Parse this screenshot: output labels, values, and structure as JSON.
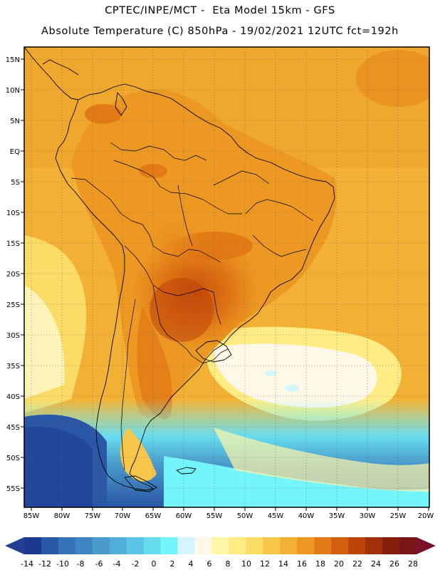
{
  "header": {
    "line1": "CPTEC/INPE/MCT -  Eta Model 15km - GFS",
    "line2": "Absolute Temperature (C) 850hPa - 19/02/2021 12UTC fct=192h"
  },
  "map": {
    "lon_labels": [
      "85W",
      "80W",
      "75W",
      "70W",
      "65W",
      "60W",
      "55W",
      "50W",
      "45W",
      "40W",
      "35W",
      "30W",
      "25W",
      "20W"
    ],
    "lat_labels": [
      "15N",
      "10N",
      "5N",
      "EQ",
      "5S",
      "10S",
      "15S",
      "20S",
      "25S",
      "30S",
      "35S",
      "40S",
      "45S",
      "50S",
      "55S"
    ],
    "extent": {
      "lon_min": -85.5,
      "lon_max": -19.5,
      "lat_min": -58,
      "lat_max": 16.5
    }
  },
  "colorbar": {
    "labels": [
      "-14",
      "-12",
      "-10",
      "-8",
      "-6",
      "-4",
      "-2",
      "0",
      "2",
      "4",
      "6",
      "8",
      "10",
      "12",
      "14",
      "16",
      "18",
      "20",
      "22",
      "24",
      "26",
      "28"
    ],
    "colors": [
      "#1b3a8f",
      "#2a58a6",
      "#3573b8",
      "#3e86c2",
      "#4a9acc",
      "#52adda",
      "#5cc4e6",
      "#67dcef",
      "#74f4fb",
      "#d2f6fb",
      "#fff8e8",
      "#fff7a8",
      "#ffec84",
      "#fcdc66",
      "#f7c74b",
      "#f2b134",
      "#ec9822",
      "#e27a16",
      "#d35f0e",
      "#bf440a",
      "#a3300a",
      "#861f0a",
      "#7a1616"
    ],
    "under_color": "#223f92",
    "over_color": "#7c0f2a"
  }
}
